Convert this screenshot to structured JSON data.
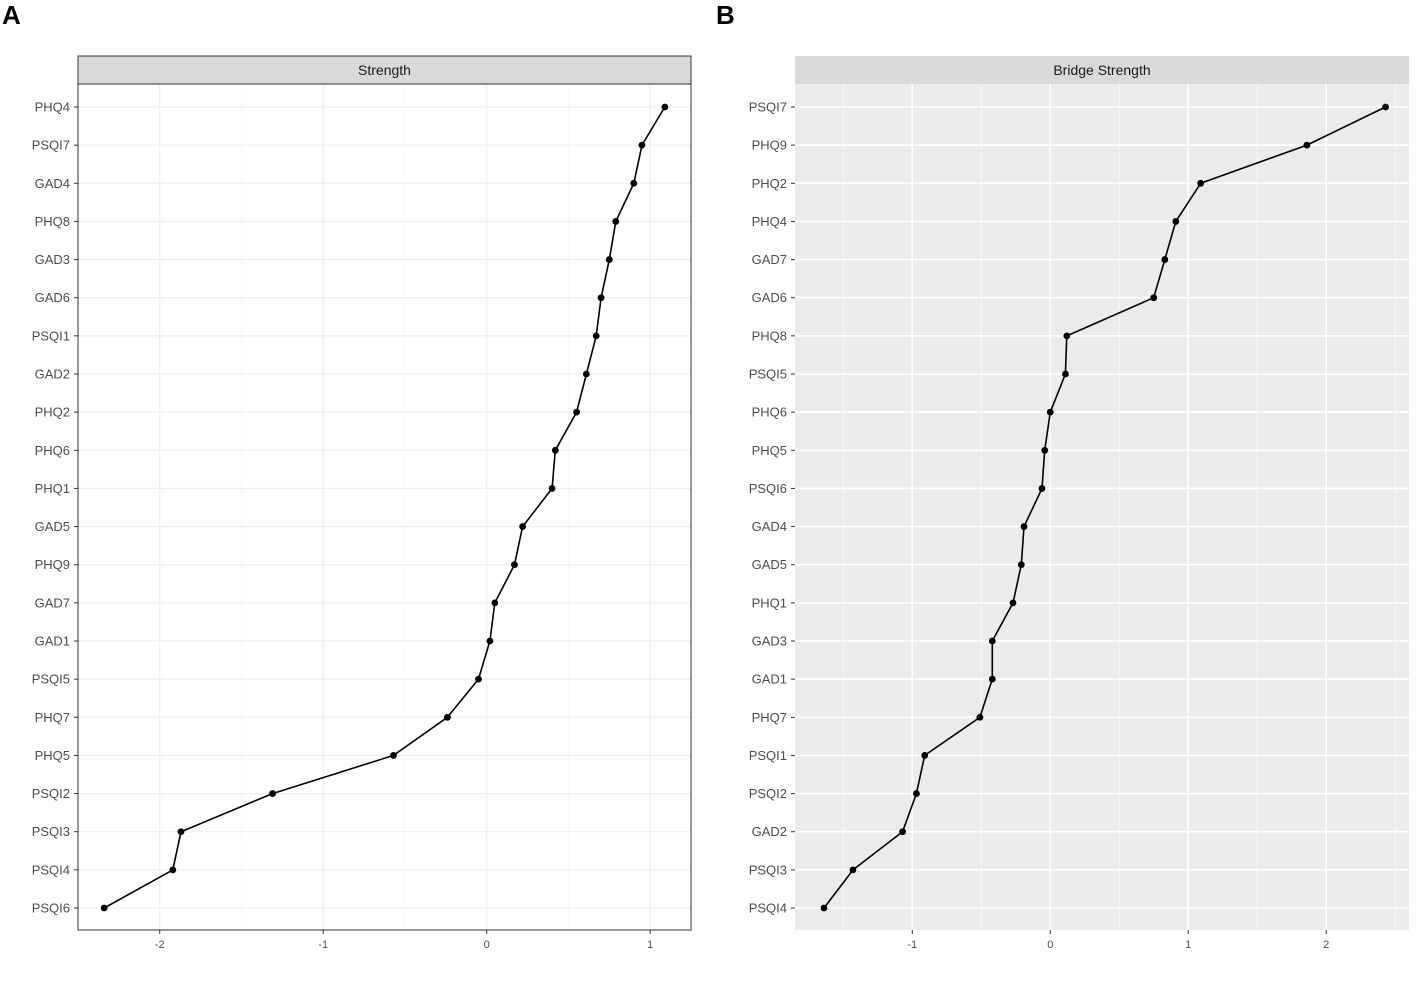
{
  "chart_data": [
    {
      "panel_label": "A",
      "type": "line",
      "orientation": "horizontal",
      "title": "Strength",
      "theme": "bw",
      "xlim": [
        -2.5,
        1.25
      ],
      "x_ticks": [
        -2,
        -1,
        0,
        1
      ],
      "x_tick_labels": [
        "-2",
        "-1",
        "0",
        "1"
      ],
      "categories": [
        "PHQ4",
        "PSQI7",
        "GAD4",
        "PHQ8",
        "GAD3",
        "GAD6",
        "PSQI1",
        "GAD2",
        "PHQ2",
        "PHQ6",
        "PHQ1",
        "GAD5",
        "PHQ9",
        "GAD7",
        "GAD1",
        "PSQI5",
        "PHQ7",
        "PHQ5",
        "PSQI2",
        "PSQI3",
        "PSQI4",
        "PSQI6"
      ],
      "values": [
        1.09,
        0.95,
        0.9,
        0.79,
        0.75,
        0.7,
        0.67,
        0.61,
        0.55,
        0.42,
        0.4,
        0.22,
        0.17,
        0.05,
        0.02,
        -0.05,
        -0.24,
        -0.57,
        -1.31,
        -1.87,
        -1.92,
        -2.34
      ]
    },
    {
      "panel_label": "B",
      "type": "line",
      "orientation": "horizontal",
      "title": "Bridge Strength",
      "theme": "gray",
      "xlim": [
        -1.85,
        2.6
      ],
      "x_ticks": [
        -1,
        0,
        1,
        2
      ],
      "x_tick_labels": [
        "-1",
        "0",
        "1",
        "2"
      ],
      "categories": [
        "PSQI7",
        "PHQ9",
        "PHQ2",
        "PHQ4",
        "GAD7",
        "GAD6",
        "PHQ8",
        "PSQI5",
        "PHQ6",
        "PHQ5",
        "PSQI6",
        "GAD4",
        "GAD5",
        "PHQ1",
        "GAD3",
        "GAD1",
        "PHQ7",
        "PSQI1",
        "PSQI2",
        "GAD2",
        "PSQI3",
        "PSQI4"
      ],
      "values": [
        2.43,
        1.86,
        1.09,
        0.91,
        0.83,
        0.75,
        0.12,
        0.11,
        0.0,
        -0.04,
        -0.06,
        -0.19,
        -0.21,
        -0.27,
        -0.42,
        -0.42,
        -0.51,
        -0.91,
        -0.97,
        -1.07,
        -1.43,
        -1.64
      ]
    }
  ]
}
